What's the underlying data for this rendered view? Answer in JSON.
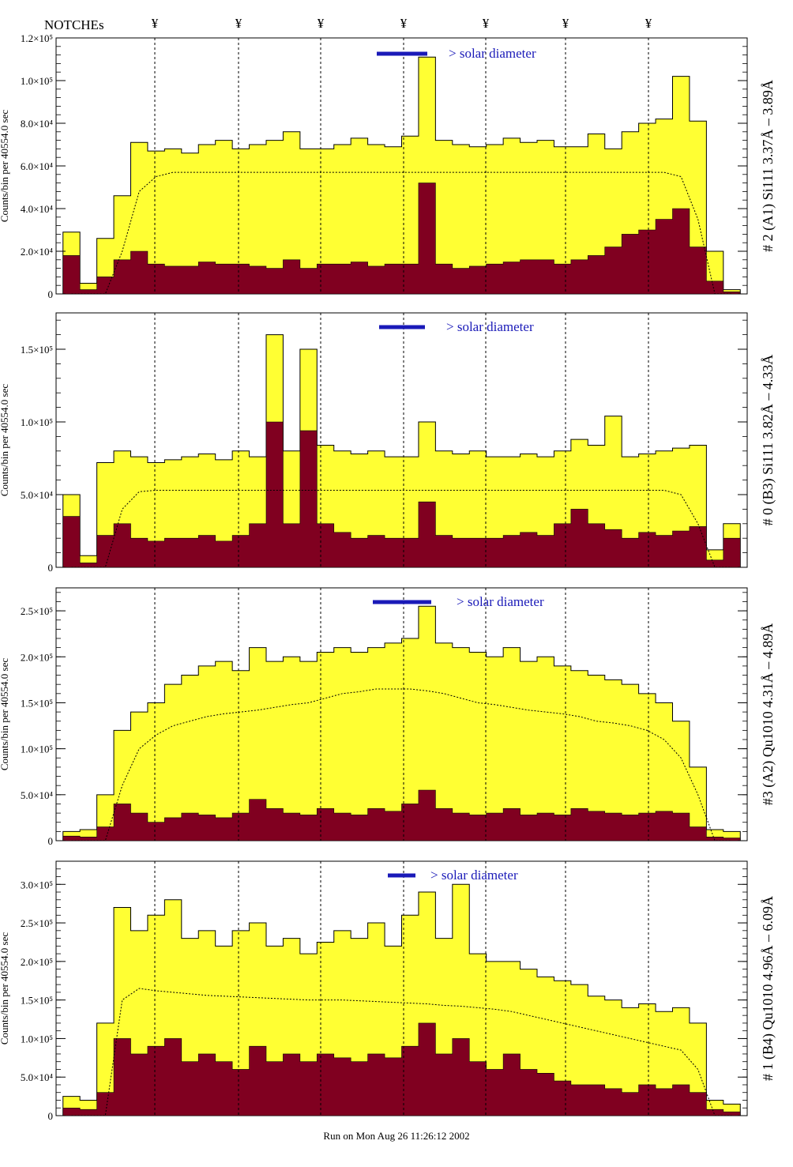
{
  "header": {
    "notches_label": "NOTCHEs",
    "notch_marker": "¥"
  },
  "footer": {
    "run_text": "Run on Mon Aug 26 11:26:12 2002"
  },
  "chart_data": [
    {
      "type": "area",
      "ylabel": "Counts/bin per  40554.0 sec",
      "channel_label": "# 2 (A1) Si111  3.37Å – 3.89Å",
      "solar_label": "> solar diameter",
      "ylim": [
        0,
        120000
      ],
      "yticks": [
        0,
        20000,
        40000,
        60000,
        80000,
        100000,
        120000
      ],
      "ytick_labels": [
        "0",
        "2.0×10⁴",
        "4.0×10⁴",
        "6.0×10⁴",
        "8.0×10⁴",
        "1.0×10⁵",
        "1.2×10⁵"
      ],
      "series": [
        {
          "name": "total",
          "color": "#ffff33",
          "values": [
            29000,
            5000,
            26000,
            46000,
            71000,
            67000,
            68000,
            66000,
            70000,
            72000,
            68000,
            70000,
            72000,
            76000,
            68000,
            68000,
            70000,
            73000,
            70000,
            69000,
            74000,
            111000,
            72000,
            70000,
            69000,
            70000,
            73000,
            71000,
            72000,
            69000,
            69000,
            75000,
            68000,
            76000,
            80000,
            82000,
            102000,
            81000,
            20000,
            2000
          ]
        },
        {
          "name": "background",
          "color": "#800020",
          "values": [
            18000,
            2000,
            8000,
            16000,
            20000,
            14000,
            13000,
            13000,
            15000,
            14000,
            14000,
            13000,
            12000,
            16000,
            12000,
            14000,
            14000,
            15000,
            13000,
            14000,
            14000,
            52000,
            14000,
            12000,
            13000,
            14000,
            15000,
            16000,
            16000,
            14000,
            16000,
            18000,
            22000,
            28000,
            30000,
            35000,
            40000,
            22000,
            6000,
            1000
          ]
        },
        {
          "name": "model",
          "values": [
            0,
            0,
            0,
            20000,
            48000,
            55000,
            57000,
            57000,
            57000,
            57000,
            57000,
            57000,
            57000,
            57000,
            57000,
            57000,
            57000,
            57000,
            57000,
            57000,
            57000,
            57000,
            57000,
            57000,
            57000,
            57000,
            57000,
            57000,
            57000,
            57000,
            57000,
            57000,
            57000,
            57000,
            57000,
            57000,
            55000,
            35000,
            0,
            0
          ]
        }
      ]
    },
    {
      "type": "area",
      "ylabel": "Counts/bin per  40554.0 sec",
      "channel_label": "# 0 (B3) Si111  3.82Å – 4.33Å",
      "solar_label": "> solar diameter",
      "ylim": [
        0,
        175000
      ],
      "yticks": [
        0,
        50000,
        100000,
        150000
      ],
      "ytick_labels": [
        "0",
        "5.0×10⁴",
        "1.0×10⁵",
        "1.5×10⁵"
      ],
      "series": [
        {
          "name": "total",
          "color": "#ffff33",
          "values": [
            50000,
            8000,
            72000,
            80000,
            76000,
            72000,
            74000,
            76000,
            78000,
            74000,
            80000,
            76000,
            160000,
            80000,
            150000,
            84000,
            80000,
            78000,
            80000,
            76000,
            76000,
            100000,
            80000,
            78000,
            80000,
            76000,
            76000,
            78000,
            76000,
            80000,
            88000,
            84000,
            104000,
            76000,
            78000,
            80000,
            82000,
            84000,
            12000,
            30000
          ]
        },
        {
          "name": "background",
          "color": "#800020",
          "values": [
            35000,
            3000,
            22000,
            30000,
            20000,
            18000,
            20000,
            20000,
            22000,
            18000,
            22000,
            30000,
            100000,
            30000,
            94000,
            30000,
            24000,
            20000,
            22000,
            20000,
            20000,
            45000,
            22000,
            20000,
            20000,
            20000,
            22000,
            24000,
            22000,
            30000,
            40000,
            30000,
            26000,
            20000,
            24000,
            22000,
            25000,
            28000,
            5000,
            20000
          ]
        },
        {
          "name": "model",
          "values": [
            0,
            0,
            0,
            40000,
            52000,
            53000,
            53000,
            53000,
            53000,
            53000,
            53000,
            53000,
            53000,
            53000,
            53000,
            53000,
            53000,
            53000,
            53000,
            53000,
            53000,
            53000,
            53000,
            53000,
            53000,
            53000,
            53000,
            53000,
            53000,
            53000,
            53000,
            53000,
            53000,
            53000,
            53000,
            53000,
            50000,
            30000,
            0,
            0
          ]
        }
      ]
    },
    {
      "type": "area",
      "ylabel": "Counts/bin per  40554.0 sec",
      "channel_label": "#3 (A2) Qu1010  4.31Å – 4.89Å",
      "solar_label": "> solar diameter",
      "ylim": [
        0,
        275000
      ],
      "yticks": [
        0,
        50000,
        100000,
        150000,
        200000,
        250000
      ],
      "ytick_labels": [
        "0",
        "5.0×10⁴",
        "1.0×10⁵",
        "1.5×10⁵",
        "2.0×10⁵",
        "2.5×10⁵"
      ],
      "series": [
        {
          "name": "total",
          "color": "#ffff33",
          "values": [
            10000,
            12000,
            50000,
            120000,
            140000,
            150000,
            170000,
            180000,
            190000,
            195000,
            185000,
            210000,
            195000,
            200000,
            195000,
            205000,
            210000,
            205000,
            210000,
            215000,
            220000,
            255000,
            215000,
            210000,
            205000,
            200000,
            210000,
            195000,
            200000,
            190000,
            185000,
            180000,
            175000,
            170000,
            160000,
            150000,
            130000,
            80000,
            12000,
            10000
          ]
        },
        {
          "name": "background",
          "color": "#800020",
          "values": [
            5000,
            4000,
            15000,
            40000,
            30000,
            20000,
            25000,
            30000,
            28000,
            25000,
            30000,
            45000,
            35000,
            30000,
            28000,
            35000,
            30000,
            28000,
            35000,
            32000,
            40000,
            55000,
            35000,
            30000,
            28000,
            30000,
            35000,
            28000,
            30000,
            28000,
            35000,
            32000,
            30000,
            28000,
            30000,
            32000,
            30000,
            15000,
            4000,
            3000
          ]
        },
        {
          "name": "model",
          "values": [
            0,
            0,
            0,
            60000,
            100000,
            115000,
            125000,
            130000,
            135000,
            138000,
            140000,
            142000,
            145000,
            148000,
            150000,
            155000,
            160000,
            162000,
            165000,
            165000,
            165000,
            163000,
            160000,
            155000,
            150000,
            148000,
            145000,
            142000,
            140000,
            138000,
            135000,
            130000,
            128000,
            125000,
            120000,
            110000,
            90000,
            50000,
            0,
            0
          ]
        }
      ]
    },
    {
      "type": "area",
      "ylabel": "Counts/bin per  40554.0 sec",
      "channel_label": "# 1 (B4) Qu1010 4.96Å – 6.09Å",
      "solar_label": "> solar diameter",
      "ylim": [
        0,
        330000
      ],
      "yticks": [
        0,
        50000,
        100000,
        150000,
        200000,
        250000,
        300000
      ],
      "ytick_labels": [
        "0",
        "5.0×10⁴",
        "1.0×10⁵",
        "1.5×10⁵",
        "2.0×10⁵",
        "2.5×10⁵",
        "3.0×10⁵"
      ],
      "series": [
        {
          "name": "total",
          "color": "#ffff33",
          "values": [
            25000,
            20000,
            120000,
            270000,
            240000,
            260000,
            280000,
            230000,
            240000,
            220000,
            240000,
            250000,
            220000,
            230000,
            210000,
            225000,
            240000,
            230000,
            250000,
            220000,
            260000,
            290000,
            230000,
            300000,
            210000,
            200000,
            200000,
            190000,
            180000,
            175000,
            170000,
            155000,
            150000,
            140000,
            145000,
            135000,
            140000,
            120000,
            20000,
            15000
          ]
        },
        {
          "name": "background",
          "color": "#800020",
          "values": [
            10000,
            8000,
            30000,
            100000,
            80000,
            90000,
            100000,
            70000,
            80000,
            70000,
            60000,
            90000,
            70000,
            80000,
            70000,
            80000,
            75000,
            70000,
            80000,
            75000,
            90000,
            120000,
            80000,
            100000,
            70000,
            60000,
            80000,
            60000,
            55000,
            45000,
            40000,
            40000,
            35000,
            30000,
            40000,
            35000,
            40000,
            30000,
            8000,
            5000
          ]
        },
        {
          "name": "model",
          "values": [
            0,
            0,
            0,
            150000,
            165000,
            162000,
            160000,
            158000,
            156000,
            155000,
            154000,
            153000,
            152000,
            151000,
            150000,
            150000,
            150000,
            149000,
            148000,
            147000,
            146000,
            145000,
            143000,
            142000,
            140000,
            138000,
            135000,
            130000,
            125000,
            120000,
            115000,
            110000,
            105000,
            100000,
            95000,
            90000,
            85000,
            60000,
            0,
            0
          ]
        }
      ]
    }
  ]
}
